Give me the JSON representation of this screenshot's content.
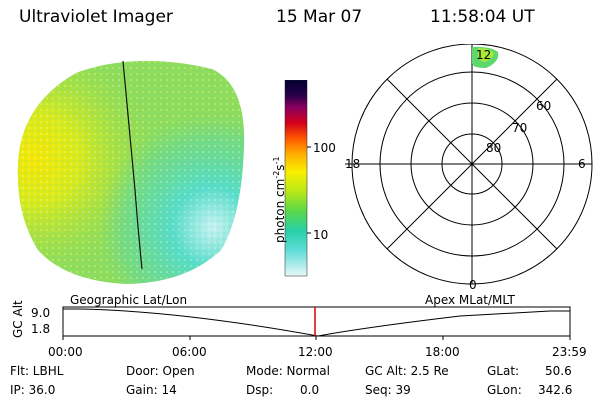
{
  "header": {
    "title": "Ultraviolet Imager",
    "date": "15 Mar 07",
    "time": "11:58:04 UT"
  },
  "colorbar": {
    "label": "photon cm",
    "sup1": "-2",
    "mid": "s",
    "sup2": "-1",
    "tick_high": "100",
    "tick_low": "10"
  },
  "polar": {
    "mlt_top": "12",
    "mlt_left": "18",
    "mlt_right": "6",
    "mlt_bottom": "0",
    "lat_60": "60",
    "lat_70": "70",
    "lat_80": "80"
  },
  "timeline": {
    "left_title": "Geographic Lat/Lon",
    "right_title": "Apex MLat/MLT",
    "axis_name": "GC Alt",
    "y_max": "9.0",
    "y_min": "1.8",
    "ticks": [
      "00:00",
      "06:00",
      "12:00",
      "18:00",
      "23:59"
    ],
    "marker_color": "#dd0000"
  },
  "status": {
    "flt": "Flt: LBHL",
    "ip": "IP: 36.0",
    "door": "Door: Open",
    "gain": "Gain: 14",
    "mode": "Mode: Normal",
    "dsp_label": "Dsp:",
    "dsp_value": "0.0",
    "gcalt": "GC Alt: 2.5 Re",
    "seq": "Seq: 39",
    "glat_label": "GLat:",
    "glat_value": "50.6",
    "glon_label": "GLon:",
    "glon_value": "342.6"
  }
}
